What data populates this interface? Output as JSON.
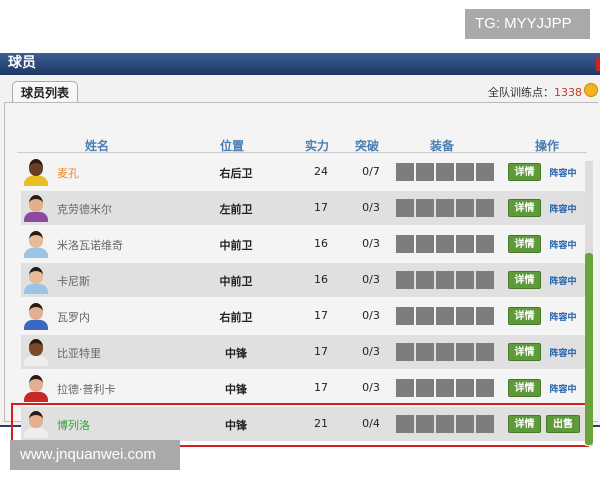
{
  "watermarks": {
    "top": "TG: MYYJJPP",
    "bottom": "www.jnquanwei.com"
  },
  "window": {
    "title": "球员"
  },
  "tab": {
    "label": "球员列表"
  },
  "team_points": {
    "label": "全队训练点：",
    "value": "1338",
    "icon": "coin-icon"
  },
  "columns": [
    "姓名",
    "位置",
    "实力",
    "突破",
    "装备",
    "操作"
  ],
  "buttons": {
    "detail": "详情",
    "in_lineup": "阵容中",
    "sell": "出售"
  },
  "colors": {
    "name_orange": "#e8892a",
    "name_green": "#2ea82e",
    "button_green": "#5e9a3a",
    "highlight_red": "#d52020"
  },
  "players": [
    {
      "name": "麦孔",
      "position": "右后卫",
      "strength": "24",
      "breakthrough": "0/7",
      "action": "in_lineup",
      "name_color": "orange"
    },
    {
      "name": "克劳德米尔",
      "position": "左前卫",
      "strength": "17",
      "breakthrough": "0/3",
      "action": "in_lineup",
      "name_color": "gray"
    },
    {
      "name": "米洛瓦诺维奇",
      "position": "中前卫",
      "strength": "16",
      "breakthrough": "0/3",
      "action": "in_lineup",
      "name_color": "gray"
    },
    {
      "name": "卡尼斯",
      "position": "中前卫",
      "strength": "16",
      "breakthrough": "0/3",
      "action": "in_lineup",
      "name_color": "gray"
    },
    {
      "name": "瓦罗内",
      "position": "右前卫",
      "strength": "17",
      "breakthrough": "0/3",
      "action": "in_lineup",
      "name_color": "gray"
    },
    {
      "name": "比亚特里",
      "position": "中锋",
      "strength": "17",
      "breakthrough": "0/3",
      "action": "in_lineup",
      "name_color": "gray"
    },
    {
      "name": "拉德·普利卡",
      "position": "中锋",
      "strength": "17",
      "breakthrough": "0/3",
      "action": "in_lineup",
      "name_color": "gray"
    },
    {
      "name": "博列洛",
      "position": "中锋",
      "strength": "21",
      "breakthrough": "0/4",
      "action": "sell",
      "name_color": "green",
      "highlighted": true
    }
  ]
}
